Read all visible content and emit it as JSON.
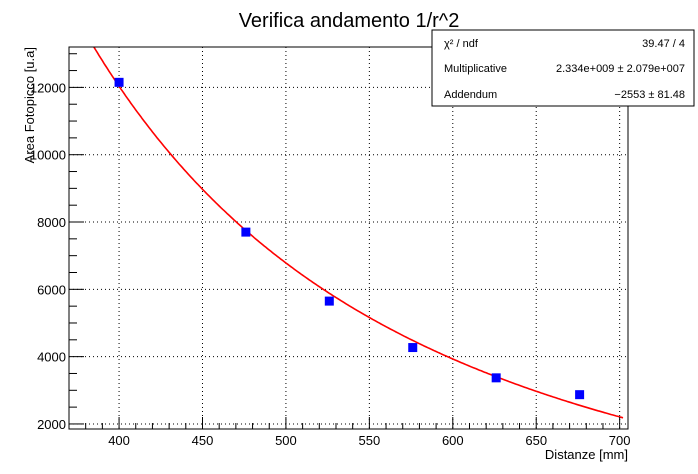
{
  "chart_data": {
    "type": "scatter",
    "title": "Verifica andamento 1/r^2",
    "xlabel": "Distanze [mm]",
    "ylabel": "Area Fotopicco [u.a]",
    "xlim": [
      370,
      705
    ],
    "ylim": [
      1850,
      13200
    ],
    "grid": true,
    "x_ticks": [
      400,
      450,
      500,
      550,
      600,
      650,
      700
    ],
    "y_ticks": [
      2000,
      4000,
      6000,
      8000,
      10000,
      12000
    ],
    "y_tick_labels": [
      "2000",
      "4000",
      "6000",
      "8000",
      "10000",
      "12000"
    ],
    "points": {
      "x": [
        400,
        476,
        526,
        576,
        626,
        676
      ],
      "y": [
        12150,
        7700,
        5650,
        4270,
        3370,
        2870
      ],
      "color": "#0000ff"
    },
    "fit": {
      "formula": "p0 / x^2 + p1",
      "multiplicative": 2334000000,
      "addendum": -2553,
      "x_range": [
        370,
        702
      ],
      "color": "#ff0000"
    },
    "stats_box": {
      "rows": [
        {
          "label": "χ² / ndf",
          "value": "39.47 / 4"
        },
        {
          "label": "Multiplicative",
          "value": "2.334e+009 ± 2.079e+007"
        },
        {
          "label": "Addendum",
          "value": "−2553 ± 81.48"
        }
      ]
    }
  }
}
